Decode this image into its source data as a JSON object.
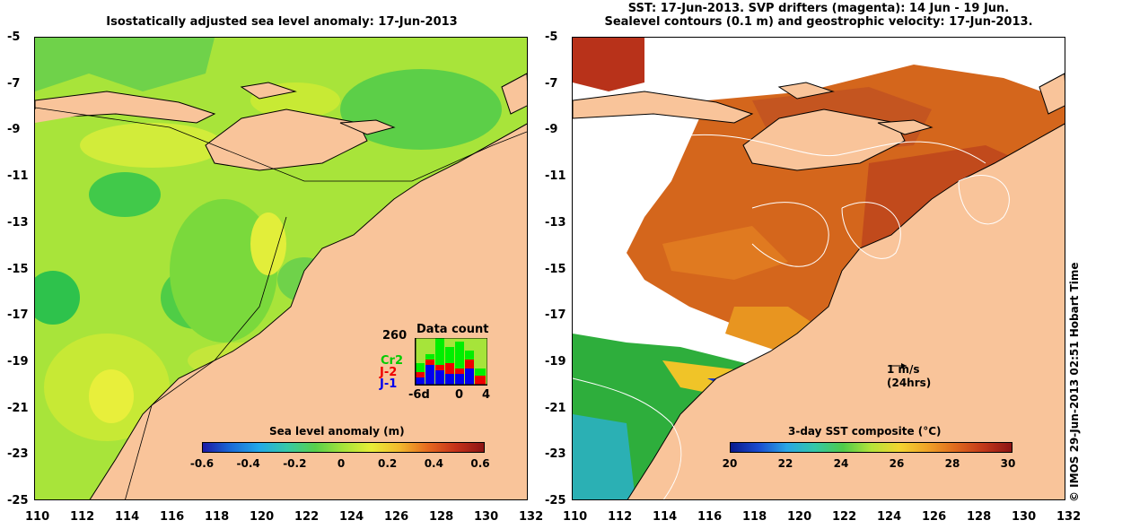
{
  "left_panel": {
    "title": "Isostatically adjusted sea level anomaly: 17-Jun-2013",
    "colorbar": {
      "title": "Sea level anomaly (m)",
      "ticks": [
        "-0.6",
        "-0.4",
        "-0.2",
        "0",
        "0.2",
        "0.4",
        "0.6"
      ]
    },
    "data_count": {
      "title": "Data count",
      "max_label": "260",
      "series": [
        {
          "name": "Cr2",
          "color": "#00dd00"
        },
        {
          "name": "J-2",
          "color": "#ee0000"
        },
        {
          "name": "J-1",
          "color": "#0000ee"
        }
      ],
      "x_ticks": [
        "-6d",
        "0",
        "4"
      ]
    }
  },
  "right_panel": {
    "title_line1": "SST: 17-Jun-2013. SVP drifters (magenta): 14 Jun - 19 Jun.",
    "title_line2": "Sealevel contours (0.1 m) and geostrophic velocity: 17-Jun-2013.",
    "colorbar": {
      "title": "3-day SST composite (°C)",
      "ticks": [
        "20",
        "22",
        "24",
        "26",
        "28",
        "30"
      ]
    },
    "velocity_scale": {
      "label1": "1 m/s",
      "label2": "(24hrs)"
    }
  },
  "axes": {
    "y_ticks": [
      "-5",
      "-7",
      "-9",
      "-11",
      "-13",
      "-15",
      "-17",
      "-19",
      "-21",
      "-23",
      "-25"
    ],
    "x_ticks": [
      "110",
      "112",
      "114",
      "116",
      "118",
      "120",
      "122",
      "124",
      "126",
      "128",
      "130",
      "132"
    ]
  },
  "stamp": "© IMOS 29-Jun-2013 02:51 Hobart Time",
  "colors": {
    "land": "#f9c49a",
    "sla_base": "#9de023",
    "sst_warm": "#d4661c",
    "sst_cool": "#22b03c"
  }
}
